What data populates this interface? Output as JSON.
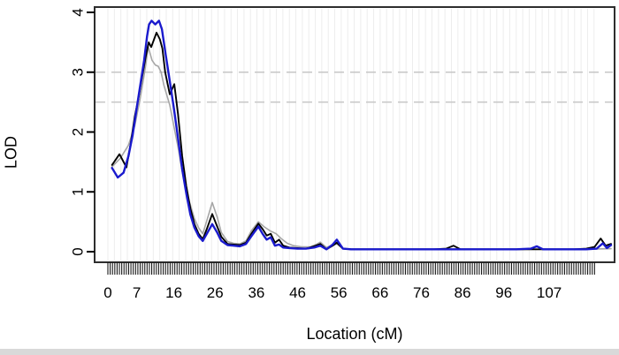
{
  "chart_data": {
    "type": "line",
    "title": "",
    "xlabel": "Location (cM)",
    "ylabel": "LOD",
    "x_tick_labels": [
      0,
      7,
      16,
      26,
      36,
      46,
      56,
      66,
      76,
      86,
      96,
      107
    ],
    "y_tick_labels": [
      0,
      1,
      2,
      3,
      4
    ],
    "xlim": [
      -3,
      123
    ],
    "ylim": [
      0,
      4.1
    ],
    "grid": "light vertical stripes at marker positions",
    "legend": "none",
    "threshold_lines": [
      {
        "lod": 3.0,
        "style": "dashed",
        "color": "#c6c6c6"
      },
      {
        "lod": 2.5,
        "style": "dashed",
        "color": "#c6c6c6"
      }
    ],
    "rug": {
      "axis": "x",
      "start_cM": 0,
      "end_cM": 118,
      "approx_tick_count": 212,
      "description": "dense marker-position ticks below x-axis"
    },
    "series": [
      {
        "name": "gray",
        "color": "#a6a6a6",
        "width": 1.6,
        "points": [
          [
            1,
            1.42
          ],
          [
            3,
            1.56
          ],
          [
            5,
            1.78
          ],
          [
            6.5,
            2.1
          ],
          [
            7.8,
            2.55
          ],
          [
            8.8,
            2.95
          ],
          [
            9.8,
            3.42
          ],
          [
            10.7,
            3.2
          ],
          [
            11.5,
            3.12
          ],
          [
            12.2,
            3.1
          ],
          [
            12.9,
            3.0
          ],
          [
            13.6,
            2.78
          ],
          [
            15,
            2.45
          ],
          [
            16,
            2.1
          ],
          [
            17,
            1.75
          ],
          [
            18,
            1.35
          ],
          [
            19,
            1.0
          ],
          [
            20,
            0.78
          ],
          [
            21,
            0.55
          ],
          [
            22,
            0.4
          ],
          [
            23,
            0.3
          ],
          [
            24,
            0.52
          ],
          [
            25.3,
            0.82
          ],
          [
            26.5,
            0.58
          ],
          [
            27.5,
            0.32
          ],
          [
            29,
            0.17
          ],
          [
            30.5,
            0.14
          ],
          [
            32,
            0.13
          ],
          [
            33.5,
            0.18
          ],
          [
            34.8,
            0.35
          ],
          [
            36.5,
            0.5
          ],
          [
            37.8,
            0.42
          ],
          [
            39.3,
            0.35
          ],
          [
            40.8,
            0.3
          ],
          [
            42,
            0.22
          ],
          [
            43.5,
            0.14
          ],
          [
            45,
            0.1
          ],
          [
            47,
            0.08
          ],
          [
            49,
            0.08
          ],
          [
            50.5,
            0.12
          ],
          [
            51.5,
            0.16
          ],
          [
            53,
            0.07
          ],
          [
            54.5,
            0.11
          ],
          [
            55.5,
            0.13
          ],
          [
            57,
            0.05
          ],
          [
            59,
            0.04
          ],
          [
            65,
            0.04
          ],
          [
            75,
            0.04
          ],
          [
            85,
            0.04
          ],
          [
            95,
            0.04
          ],
          [
            105,
            0.04
          ],
          [
            115,
            0.04
          ],
          [
            122,
            0.05
          ]
        ]
      },
      {
        "name": "black",
        "color": "#000000",
        "width": 1.9,
        "points": [
          [
            1,
            1.45
          ],
          [
            2.8,
            1.63
          ],
          [
            4.5,
            1.41
          ],
          [
            5.5,
            1.8
          ],
          [
            6.5,
            2.25
          ],
          [
            7.5,
            2.6
          ],
          [
            8.3,
            2.92
          ],
          [
            9.2,
            3.27
          ],
          [
            9.9,
            3.5
          ],
          [
            10.5,
            3.42
          ],
          [
            11.8,
            3.66
          ],
          [
            12.6,
            3.55
          ],
          [
            13.2,
            3.4
          ],
          [
            13.9,
            3.0
          ],
          [
            15,
            2.63
          ],
          [
            16.1,
            2.8
          ],
          [
            17,
            2.3
          ],
          [
            18,
            1.6
          ],
          [
            19,
            1.1
          ],
          [
            20,
            0.72
          ],
          [
            21,
            0.46
          ],
          [
            22,
            0.3
          ],
          [
            23,
            0.21
          ],
          [
            24,
            0.38
          ],
          [
            25.3,
            0.63
          ],
          [
            26.5,
            0.42
          ],
          [
            27.5,
            0.25
          ],
          [
            29,
            0.13
          ],
          [
            30.5,
            0.12
          ],
          [
            32,
            0.11
          ],
          [
            33.5,
            0.15
          ],
          [
            34.8,
            0.3
          ],
          [
            36.5,
            0.47
          ],
          [
            37.5,
            0.38
          ],
          [
            38.5,
            0.27
          ],
          [
            39.5,
            0.3
          ],
          [
            40.5,
            0.15
          ],
          [
            41.5,
            0.2
          ],
          [
            42.5,
            0.1
          ],
          [
            44,
            0.07
          ],
          [
            46,
            0.06
          ],
          [
            48,
            0.05
          ],
          [
            50,
            0.09
          ],
          [
            51.5,
            0.13
          ],
          [
            53,
            0.04
          ],
          [
            54.5,
            0.1
          ],
          [
            55.5,
            0.15
          ],
          [
            57,
            0.05
          ],
          [
            59,
            0.04
          ],
          [
            63,
            0.04
          ],
          [
            67,
            0.04
          ],
          [
            71,
            0.04
          ],
          [
            75,
            0.04
          ],
          [
            79,
            0.04
          ],
          [
            82,
            0.05
          ],
          [
            83.8,
            0.1
          ],
          [
            85.5,
            0.04
          ],
          [
            89,
            0.04
          ],
          [
            93,
            0.04
          ],
          [
            97,
            0.04
          ],
          [
            101,
            0.04
          ],
          [
            105,
            0.04
          ],
          [
            109,
            0.04
          ],
          [
            113,
            0.04
          ],
          [
            116,
            0.05
          ],
          [
            118,
            0.08
          ],
          [
            119.5,
            0.22
          ],
          [
            120.7,
            0.1
          ],
          [
            122,
            0.13
          ]
        ]
      },
      {
        "name": "blue",
        "color": "#1a1acd",
        "width": 2.4,
        "points": [
          [
            1,
            1.4
          ],
          [
            2.4,
            1.24
          ],
          [
            3.8,
            1.32
          ],
          [
            5,
            1.6
          ],
          [
            6,
            1.95
          ],
          [
            7,
            2.4
          ],
          [
            7.9,
            2.8
          ],
          [
            8.8,
            3.2
          ],
          [
            9.5,
            3.6
          ],
          [
            10,
            3.8
          ],
          [
            10.6,
            3.86
          ],
          [
            11.5,
            3.8
          ],
          [
            12.4,
            3.86
          ],
          [
            13.1,
            3.72
          ],
          [
            14,
            3.3
          ],
          [
            15,
            2.85
          ],
          [
            16,
            2.4
          ],
          [
            17,
            1.9
          ],
          [
            18,
            1.38
          ],
          [
            19,
            0.98
          ],
          [
            20,
            0.62
          ],
          [
            21,
            0.4
          ],
          [
            22,
            0.26
          ],
          [
            23,
            0.18
          ],
          [
            24,
            0.3
          ],
          [
            25.3,
            0.46
          ],
          [
            26.5,
            0.32
          ],
          [
            27.5,
            0.18
          ],
          [
            29,
            0.11
          ],
          [
            30.5,
            0.1
          ],
          [
            32,
            0.09
          ],
          [
            33.5,
            0.13
          ],
          [
            34.8,
            0.26
          ],
          [
            36.5,
            0.42
          ],
          [
            37.5,
            0.3
          ],
          [
            38.5,
            0.2
          ],
          [
            39.5,
            0.24
          ],
          [
            40.5,
            0.1
          ],
          [
            41.5,
            0.12
          ],
          [
            42.5,
            0.07
          ],
          [
            44,
            0.06
          ],
          [
            46,
            0.05
          ],
          [
            48,
            0.05
          ],
          [
            50,
            0.07
          ],
          [
            51.5,
            0.1
          ],
          [
            53,
            0.04
          ],
          [
            54.5,
            0.12
          ],
          [
            55.5,
            0.2
          ],
          [
            57,
            0.05
          ],
          [
            59,
            0.04
          ],
          [
            63,
            0.04
          ],
          [
            67,
            0.04
          ],
          [
            71,
            0.04
          ],
          [
            75,
            0.04
          ],
          [
            79,
            0.04
          ],
          [
            83,
            0.04
          ],
          [
            87,
            0.04
          ],
          [
            91,
            0.04
          ],
          [
            95,
            0.04
          ],
          [
            99,
            0.04
          ],
          [
            102.5,
            0.05
          ],
          [
            104,
            0.09
          ],
          [
            105.5,
            0.04
          ],
          [
            109,
            0.04
          ],
          [
            113,
            0.04
          ],
          [
            116,
            0.04
          ],
          [
            118.5,
            0.05
          ],
          [
            120,
            0.14
          ],
          [
            121,
            0.06
          ],
          [
            122,
            0.11
          ]
        ]
      }
    ],
    "colors": {
      "plot_border": "#2e2e2e",
      "stripe": "#ededed",
      "dashed_threshold": "#c6c6c6",
      "tick": "#000000",
      "background": "#ffffff",
      "window_edge": "#d9d9d9"
    }
  }
}
